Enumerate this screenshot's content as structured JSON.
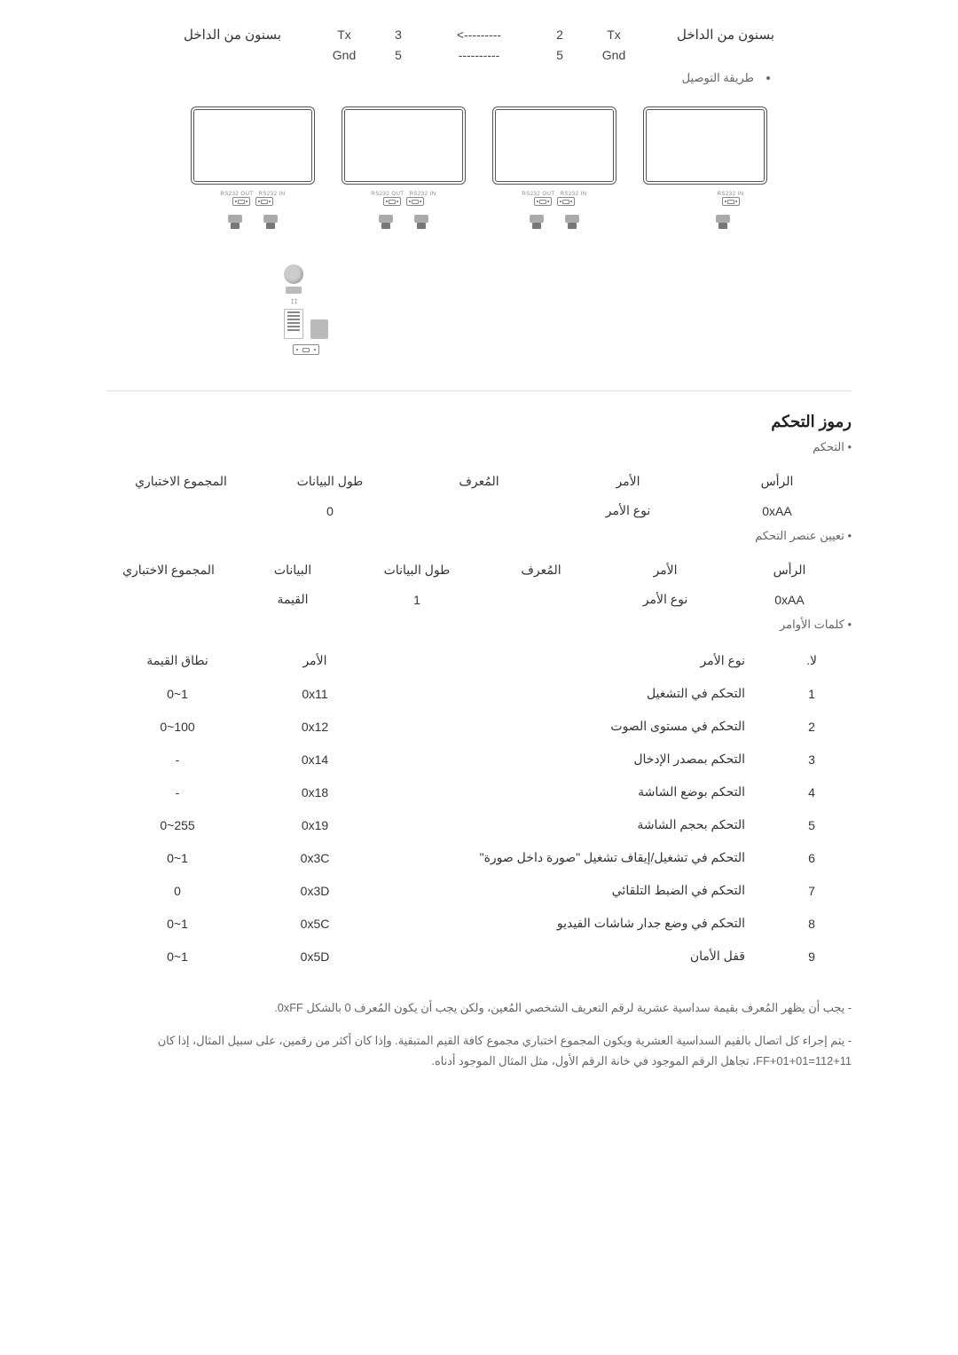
{
  "wire": {
    "left_label": "بسنون من الداخل",
    "right_label": "بسنون من الداخل",
    "rows": [
      {
        "a": "Tx",
        "ap": "2",
        "line": "--------->",
        "bp": "3",
        "b": "Tx"
      },
      {
        "a": "Gnd",
        "ap": "5",
        "line": "----------",
        "bp": "5",
        "b": "Gnd"
      }
    ],
    "method_bullet": "طريقة التوصيل"
  },
  "section_title": "رموز التحكم",
  "control_bullet": "التحكم",
  "assign_bullet": "تعيين عنصر التحكم",
  "cmdword_bullet": "كلمات الأوامر",
  "header1": {
    "cols": [
      "الرأس",
      "الأمر",
      "المُعرف",
      "طول البيانات",
      "المجموع الاختباري"
    ],
    "row": [
      "0xAA",
      "نوع الأمر",
      "",
      "0",
      ""
    ]
  },
  "header2": {
    "cols": [
      "الرأس",
      "الأمر",
      "المُعرف",
      "طول البيانات",
      "البيانات",
      "المجموع الاختباري"
    ],
    "row": [
      "0xAA",
      "نوع الأمر",
      "",
      "1",
      "القيمة",
      ""
    ]
  },
  "commands": {
    "head": {
      "no": "لا.",
      "type": "نوع الأمر",
      "cmd": "الأمر",
      "range": "نطاق القيمة"
    },
    "rows": [
      {
        "no": "1",
        "type": "التحكم في التشغيل",
        "cmd": "0x11",
        "range": "1~0"
      },
      {
        "no": "2",
        "type": "التحكم في مستوى الصوت",
        "cmd": "0x12",
        "range": "100~0"
      },
      {
        "no": "3",
        "type": "التحكم بمصدر الإدخال",
        "cmd": "0x14",
        "range": "-"
      },
      {
        "no": "4",
        "type": "التحكم بوضع الشاشة",
        "cmd": "0x18",
        "range": "-"
      },
      {
        "no": "5",
        "type": "التحكم بحجم الشاشة",
        "cmd": "0x19",
        "range": "255~0"
      },
      {
        "no": "6",
        "type": "التحكم في تشغيل/إيقاف تشغيل \"صورة داخل صورة\"",
        "cmd": "0x3C",
        "range": "1~0"
      },
      {
        "no": "7",
        "type": "التحكم في الضبط التلقائي",
        "cmd": "0x3D",
        "range": "0"
      },
      {
        "no": "8",
        "type": "التحكم في وضع جدار شاشات الفيديو",
        "cmd": "0x5C",
        "range": "1~0"
      },
      {
        "no": "9",
        "type": "قفل الأمان",
        "cmd": "0x5D",
        "range": "1~0"
      }
    ]
  },
  "notes": {
    "n1": "- يجب أن يظهر المُعرف بقيمة سداسية عشرية لرقم التعريف الشخصي المُعين، ولكن يجب أن يكون المُعرف 0 بالشكل 0xFF.",
    "n2": "- يتم إجراء كل اتصال بالقيم السداسية العشرية ويكون المجموع اختباري مجموع كافة القيم المتبقية. وإذا كان أكثر من رقمين، على سبيل المثال، إذا كان 11+112=01+01+FF، تجاهل الرقم الموجود في خانة الرقم الأول، مثل المثال الموجود أدناه."
  }
}
